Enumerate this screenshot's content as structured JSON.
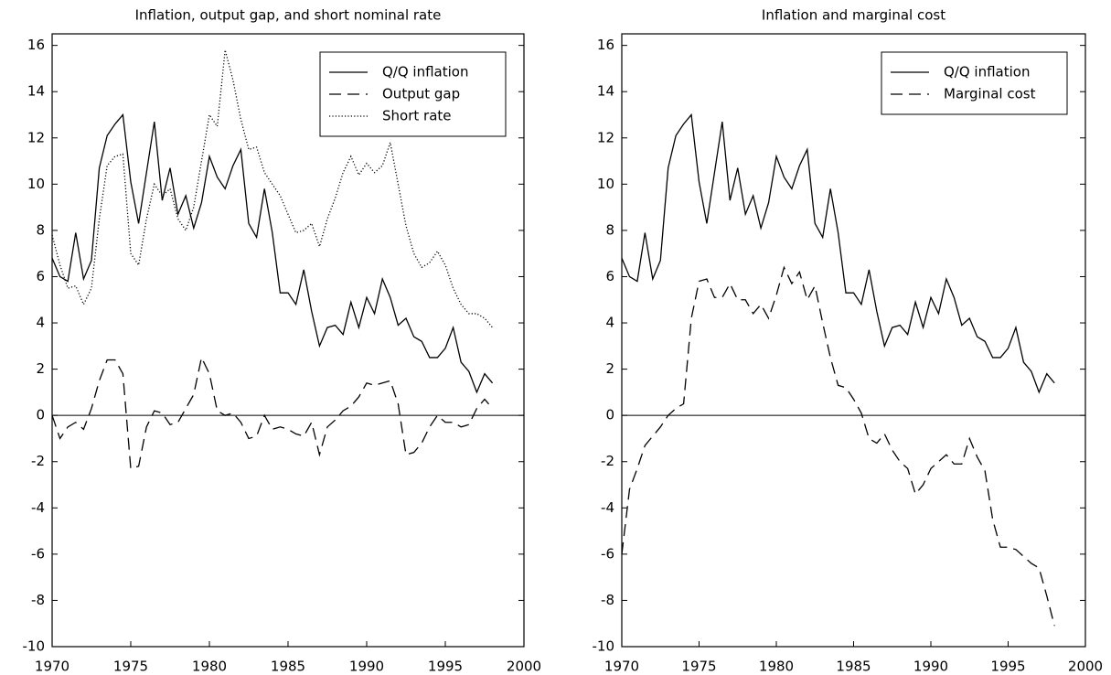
{
  "chart_data": [
    {
      "type": "line",
      "title": "Inflation, output gap, and short nominal rate",
      "x": [
        1970,
        1970.5,
        1971,
        1971.5,
        1972,
        1972.5,
        1973,
        1973.5,
        1974,
        1974.5,
        1975,
        1975.5,
        1976,
        1976.5,
        1977,
        1977.5,
        1978,
        1978.5,
        1979,
        1979.5,
        1980,
        1980.5,
        1981,
        1981.5,
        1982,
        1982.5,
        1983,
        1983.5,
        1984,
        1984.5,
        1985,
        1985.5,
        1986,
        1986.5,
        1987,
        1987.5,
        1988,
        1988.5,
        1989,
        1989.5,
        1990,
        1990.5,
        1991,
        1991.5,
        1992,
        1992.5,
        1993,
        1993.5,
        1994,
        1994.5,
        1995,
        1995.5,
        1996,
        1996.5,
        1997,
        1997.5,
        1998
      ],
      "series": [
        {
          "name": "Q/Q inflation",
          "color": "#000000",
          "style": "solid",
          "values": [
            6.8,
            6.0,
            5.8,
            7.9,
            5.9,
            6.7,
            10.7,
            12.1,
            12.6,
            13.0,
            10.1,
            8.3,
            10.5,
            12.7,
            9.3,
            10.7,
            8.7,
            9.5,
            8.1,
            9.2,
            11.2,
            10.3,
            9.8,
            10.8,
            11.5,
            8.3,
            7.7,
            9.8,
            7.9,
            5.3,
            5.3,
            4.8,
            6.3,
            4.5,
            3.0,
            3.8,
            3.9,
            3.5,
            4.9,
            3.8,
            5.1,
            4.4,
            5.9,
            5.1,
            3.9,
            4.2,
            3.4,
            3.2,
            2.5,
            2.5,
            2.9,
            3.8,
            2.3,
            1.9,
            1.0,
            1.8,
            1.4
          ]
        },
        {
          "name": "Output gap",
          "color": "#000000",
          "style": "dashed",
          "values": [
            0.0,
            -1.0,
            -0.5,
            -0.3,
            -0.6,
            0.3,
            1.5,
            2.4,
            2.4,
            1.8,
            -2.3,
            -2.2,
            -0.5,
            0.2,
            0.1,
            -0.4,
            -0.3,
            0.3,
            0.9,
            2.5,
            1.8,
            0.2,
            0.0,
            0.1,
            -0.3,
            -1.0,
            -0.9,
            0.0,
            -0.6,
            -0.5,
            -0.6,
            -0.8,
            -0.9,
            -0.3,
            -1.7,
            -0.5,
            -0.2,
            0.2,
            0.4,
            0.8,
            1.4,
            1.3,
            1.4,
            1.5,
            0.5,
            -1.7,
            -1.6,
            -1.2,
            -0.5,
            0.0,
            -0.3,
            -0.3,
            -0.5,
            -0.4,
            0.3,
            0.7,
            0.3
          ]
        },
        {
          "name": "Short rate",
          "color": "#000000",
          "style": "dotted",
          "values": [
            7.8,
            6.5,
            5.5,
            5.6,
            4.8,
            5.5,
            8.5,
            10.8,
            11.2,
            11.3,
            7.0,
            6.5,
            8.5,
            10.0,
            9.5,
            9.8,
            8.5,
            8.0,
            9.0,
            11.0,
            13.0,
            12.5,
            15.8,
            14.5,
            12.8,
            11.5,
            11.6,
            10.5,
            10.0,
            9.5,
            8.7,
            7.9,
            8.0,
            8.3,
            7.3,
            8.5,
            9.4,
            10.5,
            11.2,
            10.4,
            10.9,
            10.5,
            10.8,
            11.8,
            10.0,
            8.2,
            7.0,
            6.4,
            6.6,
            7.1,
            6.5,
            5.5,
            4.8,
            4.4,
            4.4,
            4.2,
            3.8
          ]
        }
      ],
      "xlim": [
        1970,
        2000
      ],
      "xticks": [
        1970,
        1975,
        1980,
        1985,
        1990,
        1995,
        2000
      ],
      "ylim": [
        -10,
        16.5
      ],
      "yticks": [
        -10,
        -8,
        -6,
        -4,
        -2,
        0,
        2,
        4,
        6,
        8,
        10,
        12,
        14,
        16
      ],
      "legend": "upper right"
    },
    {
      "type": "line",
      "title": "Inflation and marginal cost",
      "x": [
        1970,
        1970.5,
        1971,
        1971.5,
        1972,
        1972.5,
        1973,
        1973.5,
        1974,
        1974.5,
        1975,
        1975.5,
        1976,
        1976.5,
        1977,
        1977.5,
        1978,
        1978.5,
        1979,
        1979.5,
        1980,
        1980.5,
        1981,
        1981.5,
        1982,
        1982.5,
        1983,
        1983.5,
        1984,
        1984.5,
        1985,
        1985.5,
        1986,
        1986.5,
        1987,
        1987.5,
        1988,
        1988.5,
        1989,
        1989.5,
        1990,
        1990.5,
        1991,
        1991.5,
        1992,
        1992.5,
        1993,
        1993.5,
        1994,
        1994.5,
        1995,
        1995.5,
        1996,
        1996.5,
        1997,
        1997.5,
        1998
      ],
      "series": [
        {
          "name": "Q/Q inflation",
          "color": "#000000",
          "style": "solid",
          "values": [
            6.8,
            6.0,
            5.8,
            7.9,
            5.9,
            6.7,
            10.7,
            12.1,
            12.6,
            13.0,
            10.1,
            8.3,
            10.5,
            12.7,
            9.3,
            10.7,
            8.7,
            9.5,
            8.1,
            9.2,
            11.2,
            10.3,
            9.8,
            10.8,
            11.5,
            8.3,
            7.7,
            9.8,
            7.9,
            5.3,
            5.3,
            4.8,
            6.3,
            4.5,
            3.0,
            3.8,
            3.9,
            3.5,
            4.9,
            3.8,
            5.1,
            4.4,
            5.9,
            5.1,
            3.9,
            4.2,
            3.4,
            3.2,
            2.5,
            2.5,
            2.9,
            3.8,
            2.3,
            1.9,
            1.0,
            1.8,
            1.4
          ]
        },
        {
          "name": "Marginal cost",
          "color": "#000000",
          "style": "dashed",
          "values": [
            -6.0,
            -3.2,
            -2.3,
            -1.3,
            -0.9,
            -0.5,
            0.0,
            0.3,
            0.5,
            4.2,
            5.8,
            5.9,
            5.1,
            5.1,
            5.7,
            5.0,
            5.0,
            4.4,
            4.8,
            4.2,
            5.2,
            6.4,
            5.7,
            6.2,
            5.0,
            5.6,
            4.0,
            2.5,
            1.3,
            1.2,
            0.7,
            0.1,
            -1.0,
            -1.2,
            -0.8,
            -1.5,
            -2.0,
            -2.3,
            -3.4,
            -3.0,
            -2.3,
            -2.0,
            -1.7,
            -2.1,
            -2.1,
            -1.0,
            -1.8,
            -2.4,
            -4.5,
            -5.7,
            -5.7,
            -5.8,
            -6.1,
            -6.4,
            -6.6,
            -7.8,
            -9.1
          ]
        }
      ],
      "xlim": [
        1970,
        2000
      ],
      "xticks": [
        1970,
        1975,
        1980,
        1985,
        1990,
        1995,
        2000
      ],
      "ylim": [
        -10,
        16.5
      ],
      "yticks": [
        -10,
        -8,
        -6,
        -4,
        -2,
        0,
        2,
        4,
        6,
        8,
        10,
        12,
        14,
        16
      ],
      "legend": "upper right"
    }
  ]
}
